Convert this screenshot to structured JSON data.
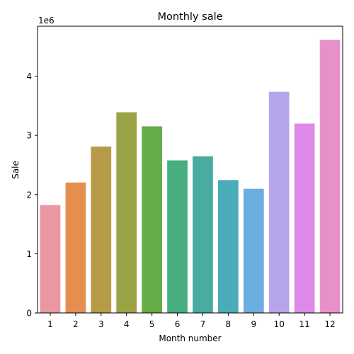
{
  "chart_data": {
    "type": "bar",
    "title": "Monthly sale",
    "xlabel": "Month number",
    "ylabel": "Sale",
    "offset_text": "1e6",
    "categories": [
      "1",
      "2",
      "3",
      "4",
      "5",
      "6",
      "7",
      "8",
      "9",
      "10",
      "11",
      "12"
    ],
    "values": [
      1822000,
      2203000,
      2811000,
      3390000,
      3152000,
      2577000,
      2647000,
      2245000,
      2097000,
      3736000,
      3199000,
      4614000
    ],
    "ylim": [
      0,
      4844000
    ],
    "yticks": [
      0,
      1000000,
      2000000,
      3000000,
      4000000
    ],
    "ytick_labels": [
      "0",
      "1",
      "2",
      "3",
      "4"
    ],
    "colors": [
      "#ea96a3",
      "#e48f50",
      "#b79a47",
      "#9ba347",
      "#66ad47",
      "#48ae81",
      "#4aaca0",
      "#4bacb9",
      "#6badde",
      "#b6a5eb",
      "#df89e8",
      "#e891c9"
    ],
    "grid": false,
    "legend": "none"
  }
}
